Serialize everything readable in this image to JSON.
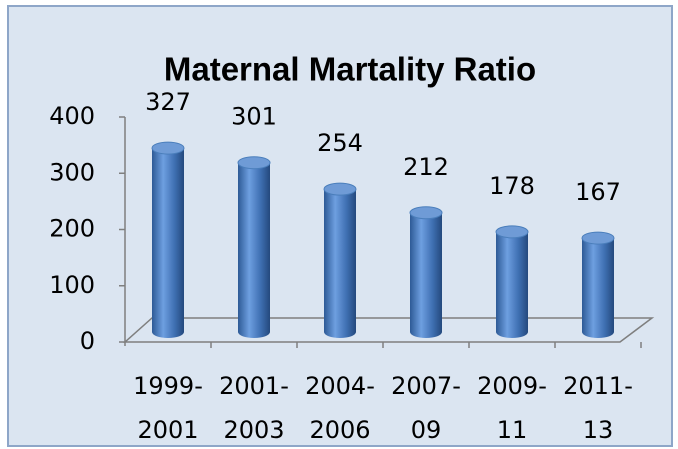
{
  "chart_data": {
    "type": "bar",
    "title": "Maternal Martality Ratio",
    "categories": [
      "1999-2001",
      "2001-2003",
      "2004-2006",
      "2007-09",
      "2009-11",
      "2011-13"
    ],
    "values": [
      327,
      301,
      254,
      212,
      178,
      167
    ],
    "color": "#4a7ebb",
    "ylim": [
      0,
      400
    ],
    "yticks": [
      0,
      100,
      200,
      300,
      400
    ]
  }
}
